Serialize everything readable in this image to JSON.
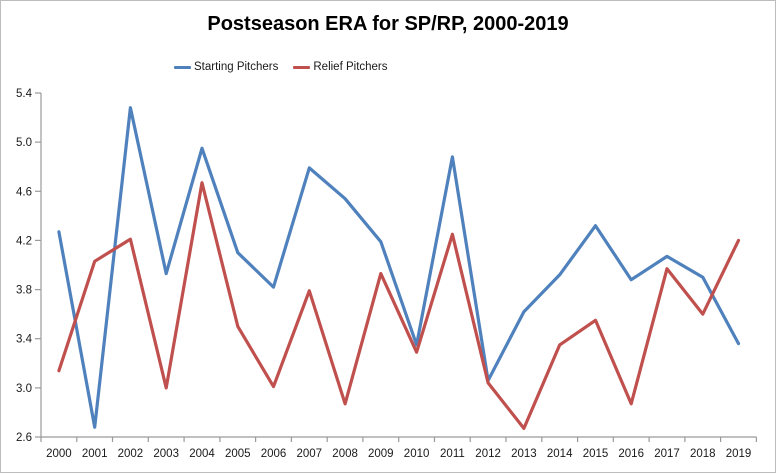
{
  "window": {
    "background": "#ffffff",
    "border_color": "#bdbdbd"
  },
  "chart_data": {
    "type": "line",
    "title": "Postseason ERA for SP/RP, 2000-2019",
    "categories": [
      "2000",
      "2001",
      "2002",
      "2003",
      "2004",
      "2005",
      "2006",
      "2007",
      "2008",
      "2009",
      "2010",
      "2011",
      "2012",
      "2013",
      "2014",
      "2015",
      "2016",
      "2017",
      "2018",
      "2019"
    ],
    "series": [
      {
        "name": "Starting Pitchers",
        "color": "#4F81BD",
        "values": [
          4.27,
          2.68,
          5.28,
          3.93,
          4.95,
          4.1,
          3.82,
          4.79,
          4.54,
          4.19,
          3.35,
          4.88,
          3.06,
          3.62,
          3.92,
          4.32,
          3.88,
          4.07,
          3.9,
          3.36
        ]
      },
      {
        "name": "Relief Pitchers",
        "color": "#C0504D",
        "values": [
          3.14,
          4.03,
          4.21,
          3.0,
          4.67,
          3.5,
          3.01,
          3.79,
          2.87,
          3.93,
          3.29,
          4.25,
          3.04,
          2.67,
          3.35,
          3.55,
          2.87,
          3.97,
          3.6,
          4.2
        ]
      }
    ],
    "xlabel": "",
    "ylabel": "",
    "ylim": [
      2.6,
      5.4
    ],
    "ytick_step": 0.4,
    "ytick_labels": [
      "2.6",
      "3.0",
      "3.4",
      "3.8",
      "4.2",
      "4.6",
      "5.0",
      "5.4"
    ],
    "grid": false,
    "legend_position": "top-center",
    "axis_color": "#9a9a9a",
    "tick_label_color": "#1a1a1a"
  }
}
